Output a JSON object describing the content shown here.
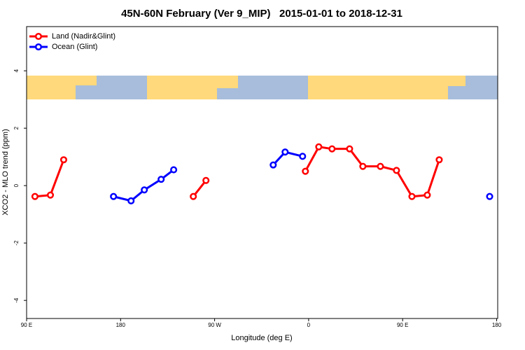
{
  "chart_data": {
    "type": "line",
    "title": "45N-60N February (Ver 9_MIP)   2015-01-01 to 2018-12-31",
    "x_label": "Longitude (deg E)",
    "y_label": "XCO2 - MLO trend (ppm)",
    "xlim": [
      90,
      541
    ],
    "ylim": [
      -4.63,
      5.54
    ],
    "xticks": [
      {
        "value": 90,
        "label": "90 E"
      },
      180,
      {
        "value": 270,
        "label": "90 W"
      },
      {
        "value": 360,
        "label": "0"
      },
      {
        "value": 450,
        "label": "90 E"
      },
      {
        "value": 540,
        "label": "180"
      }
    ],
    "yticks": [
      4,
      2,
      0,
      -2,
      -4
    ],
    "legend": "top-left",
    "series": [
      {
        "name": "Land (Nadir&Glint)",
        "color": "#ff0000",
        "x": [
          98,
          112.8,
          125.5,
          null,
          249.6,
          261.7,
          null,
          356.9,
          369.7,
          382.4,
          399.2,
          411.9,
          428.7,
          444.1,
          458.9,
          473.6,
          485.0
        ],
        "values": [
          -0.38,
          -0.33,
          0.9,
          null,
          -0.38,
          0.18,
          null,
          0.5,
          1.35,
          1.28,
          1.28,
          0.67,
          0.67,
          0.53,
          -0.38,
          -0.33,
          0.9
        ]
      },
      {
        "name": "Ocean (Glint)",
        "color": "#0000ff",
        "x": [
          173.2,
          190,
          202.7,
          218.8,
          230.8,
          null,
          326.1,
          337.5,
          354.2,
          null,
          533.3
        ],
        "values": [
          -0.38,
          -0.53,
          -0.15,
          0.22,
          0.55,
          null,
          0.72,
          1.17,
          1.02,
          null,
          -0.38
        ]
      }
    ]
  }
}
